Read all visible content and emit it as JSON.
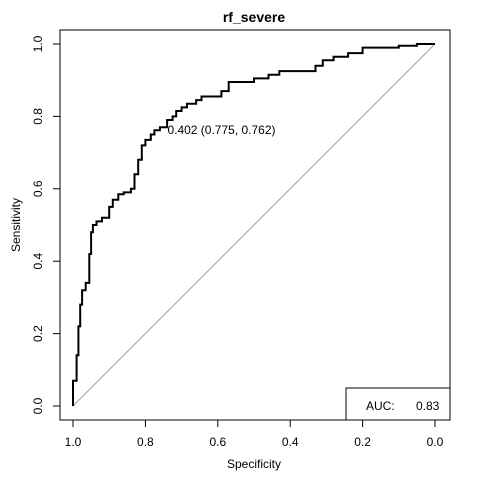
{
  "chart_data": {
    "type": "line",
    "title": "rf_severe",
    "xlabel": "Specificity",
    "ylabel": "Sensitivity",
    "xlim": [
      1.0,
      0.0
    ],
    "ylim": [
      0.0,
      1.0
    ],
    "x_reversed": true,
    "grid": false,
    "x_ticks": [
      "1.0",
      "0.8",
      "0.6",
      "0.4",
      "0.2",
      "0.0"
    ],
    "y_ticks": [
      "0.0",
      "0.2",
      "0.4",
      "0.6",
      "0.8",
      "1.0"
    ],
    "series": [
      {
        "type": "step",
        "color": "#000000",
        "points": [
          [
            1.0,
            0.0
          ],
          [
            1.0,
            0.07
          ],
          [
            0.99,
            0.07
          ],
          [
            0.99,
            0.14
          ],
          [
            0.985,
            0.14
          ],
          [
            0.985,
            0.22
          ],
          [
            0.98,
            0.22
          ],
          [
            0.98,
            0.28
          ],
          [
            0.975,
            0.28
          ],
          [
            0.975,
            0.32
          ],
          [
            0.965,
            0.32
          ],
          [
            0.965,
            0.34
          ],
          [
            0.955,
            0.34
          ],
          [
            0.955,
            0.42
          ],
          [
            0.95,
            0.42
          ],
          [
            0.95,
            0.48
          ],
          [
            0.945,
            0.48
          ],
          [
            0.945,
            0.5
          ],
          [
            0.935,
            0.5
          ],
          [
            0.935,
            0.51
          ],
          [
            0.92,
            0.51
          ],
          [
            0.92,
            0.52
          ],
          [
            0.9,
            0.52
          ],
          [
            0.9,
            0.55
          ],
          [
            0.89,
            0.55
          ],
          [
            0.89,
            0.57
          ],
          [
            0.875,
            0.57
          ],
          [
            0.875,
            0.585
          ],
          [
            0.86,
            0.585
          ],
          [
            0.86,
            0.59
          ],
          [
            0.84,
            0.59
          ],
          [
            0.84,
            0.6
          ],
          [
            0.83,
            0.6
          ],
          [
            0.83,
            0.64
          ],
          [
            0.82,
            0.64
          ],
          [
            0.82,
            0.68
          ],
          [
            0.81,
            0.68
          ],
          [
            0.81,
            0.72
          ],
          [
            0.8,
            0.72
          ],
          [
            0.8,
            0.735
          ],
          [
            0.785,
            0.735
          ],
          [
            0.785,
            0.75
          ],
          [
            0.775,
            0.75
          ],
          [
            0.775,
            0.762
          ],
          [
            0.76,
            0.762
          ],
          [
            0.76,
            0.77
          ],
          [
            0.74,
            0.77
          ],
          [
            0.74,
            0.79
          ],
          [
            0.725,
            0.79
          ],
          [
            0.725,
            0.8
          ],
          [
            0.715,
            0.8
          ],
          [
            0.715,
            0.815
          ],
          [
            0.7,
            0.815
          ],
          [
            0.7,
            0.825
          ],
          [
            0.685,
            0.825
          ],
          [
            0.685,
            0.835
          ],
          [
            0.66,
            0.835
          ],
          [
            0.66,
            0.845
          ],
          [
            0.645,
            0.845
          ],
          [
            0.645,
            0.855
          ],
          [
            0.59,
            0.855
          ],
          [
            0.59,
            0.87
          ],
          [
            0.57,
            0.87
          ],
          [
            0.57,
            0.895
          ],
          [
            0.5,
            0.895
          ],
          [
            0.5,
            0.905
          ],
          [
            0.46,
            0.905
          ],
          [
            0.46,
            0.915
          ],
          [
            0.43,
            0.915
          ],
          [
            0.43,
            0.925
          ],
          [
            0.33,
            0.925
          ],
          [
            0.33,
            0.94
          ],
          [
            0.31,
            0.94
          ],
          [
            0.31,
            0.955
          ],
          [
            0.28,
            0.955
          ],
          [
            0.28,
            0.965
          ],
          [
            0.24,
            0.965
          ],
          [
            0.24,
            0.975
          ],
          [
            0.2,
            0.975
          ],
          [
            0.2,
            0.99
          ],
          [
            0.1,
            0.99
          ],
          [
            0.1,
            0.995
          ],
          [
            0.05,
            0.995
          ],
          [
            0.05,
            1.0
          ],
          [
            0.0,
            1.0
          ]
        ]
      },
      {
        "type": "reference-diagonal",
        "color": "#a0a0a0",
        "points": [
          [
            1.0,
            0.0
          ],
          [
            0.0,
            1.0
          ]
        ]
      }
    ],
    "annotations": [
      {
        "text": "0.402 (0.775, 0.762)",
        "x": 0.775,
        "y": 0.762
      }
    ],
    "legend": {
      "position": "bottom-right",
      "label": "AUC:",
      "value": "0.83"
    }
  }
}
